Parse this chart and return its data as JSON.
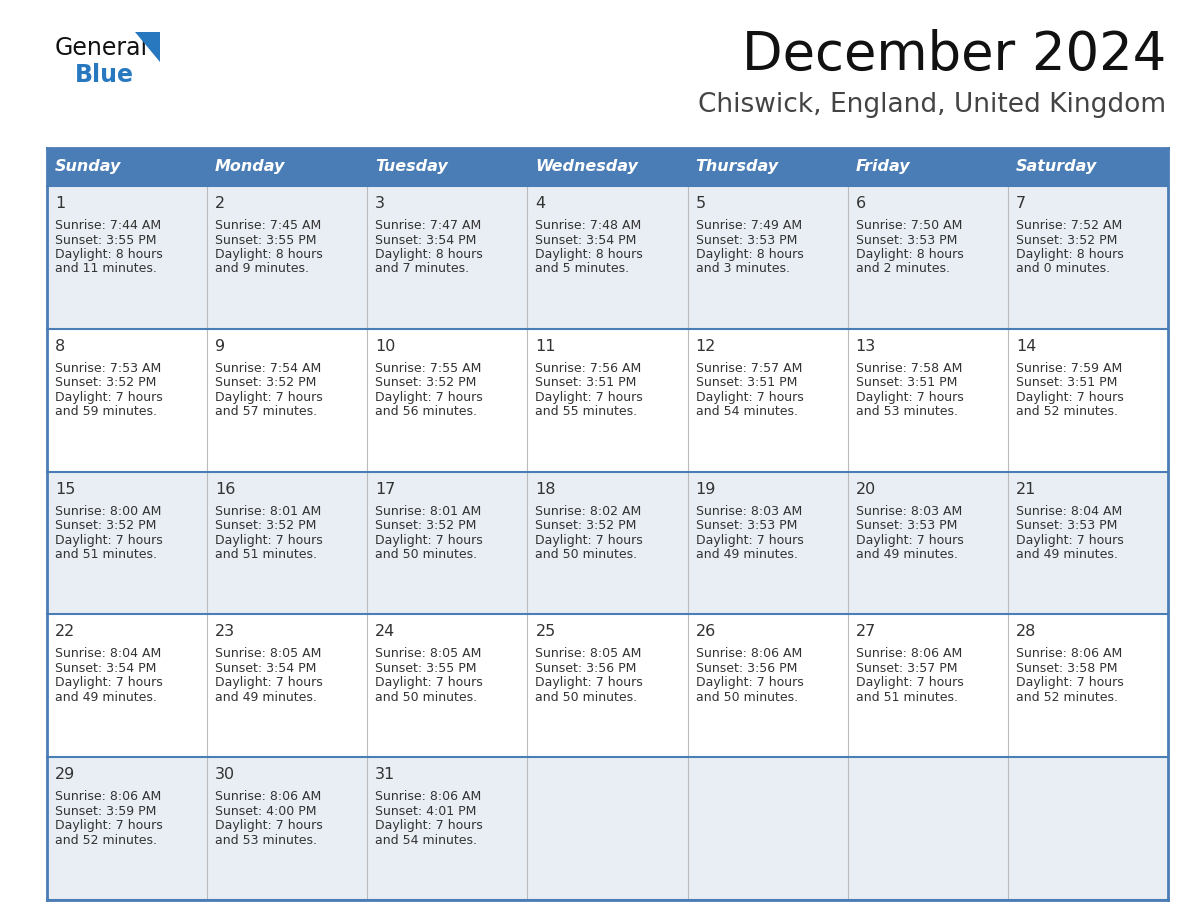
{
  "title": "December 2024",
  "subtitle": "Chiswick, England, United Kingdom",
  "days_of_week": [
    "Sunday",
    "Monday",
    "Tuesday",
    "Wednesday",
    "Thursday",
    "Friday",
    "Saturday"
  ],
  "header_bg": "#4a7db5",
  "header_text": "#ffffff",
  "row_bg_light": "#e8eef4",
  "row_bg_white": "#ffffff",
  "cell_text_color": "#333333",
  "border_color": "#4a7db5",
  "title_color": "#111111",
  "subtitle_color": "#444444",
  "logo_text_color": "#111111",
  "logo_blue_color": "#2878c0",
  "calendar_data": [
    [
      {
        "day": "1",
        "sunrise": "7:44 AM",
        "sunset": "3:55 PM",
        "daylight_h": "8 hours",
        "daylight_m": "and 11 minutes."
      },
      {
        "day": "2",
        "sunrise": "7:45 AM",
        "sunset": "3:55 PM",
        "daylight_h": "8 hours",
        "daylight_m": "and 9 minutes."
      },
      {
        "day": "3",
        "sunrise": "7:47 AM",
        "sunset": "3:54 PM",
        "daylight_h": "8 hours",
        "daylight_m": "and 7 minutes."
      },
      {
        "day": "4",
        "sunrise": "7:48 AM",
        "sunset": "3:54 PM",
        "daylight_h": "8 hours",
        "daylight_m": "and 5 minutes."
      },
      {
        "day": "5",
        "sunrise": "7:49 AM",
        "sunset": "3:53 PM",
        "daylight_h": "8 hours",
        "daylight_m": "and 3 minutes."
      },
      {
        "day": "6",
        "sunrise": "7:50 AM",
        "sunset": "3:53 PM",
        "daylight_h": "8 hours",
        "daylight_m": "and 2 minutes."
      },
      {
        "day": "7",
        "sunrise": "7:52 AM",
        "sunset": "3:52 PM",
        "daylight_h": "8 hours",
        "daylight_m": "and 0 minutes."
      }
    ],
    [
      {
        "day": "8",
        "sunrise": "7:53 AM",
        "sunset": "3:52 PM",
        "daylight_h": "7 hours",
        "daylight_m": "and 59 minutes."
      },
      {
        "day": "9",
        "sunrise": "7:54 AM",
        "sunset": "3:52 PM",
        "daylight_h": "7 hours",
        "daylight_m": "and 57 minutes."
      },
      {
        "day": "10",
        "sunrise": "7:55 AM",
        "sunset": "3:52 PM",
        "daylight_h": "7 hours",
        "daylight_m": "and 56 minutes."
      },
      {
        "day": "11",
        "sunrise": "7:56 AM",
        "sunset": "3:51 PM",
        "daylight_h": "7 hours",
        "daylight_m": "and 55 minutes."
      },
      {
        "day": "12",
        "sunrise": "7:57 AM",
        "sunset": "3:51 PM",
        "daylight_h": "7 hours",
        "daylight_m": "and 54 minutes."
      },
      {
        "day": "13",
        "sunrise": "7:58 AM",
        "sunset": "3:51 PM",
        "daylight_h": "7 hours",
        "daylight_m": "and 53 minutes."
      },
      {
        "day": "14",
        "sunrise": "7:59 AM",
        "sunset": "3:51 PM",
        "daylight_h": "7 hours",
        "daylight_m": "and 52 minutes."
      }
    ],
    [
      {
        "day": "15",
        "sunrise": "8:00 AM",
        "sunset": "3:52 PM",
        "daylight_h": "7 hours",
        "daylight_m": "and 51 minutes."
      },
      {
        "day": "16",
        "sunrise": "8:01 AM",
        "sunset": "3:52 PM",
        "daylight_h": "7 hours",
        "daylight_m": "and 51 minutes."
      },
      {
        "day": "17",
        "sunrise": "8:01 AM",
        "sunset": "3:52 PM",
        "daylight_h": "7 hours",
        "daylight_m": "and 50 minutes."
      },
      {
        "day": "18",
        "sunrise": "8:02 AM",
        "sunset": "3:52 PM",
        "daylight_h": "7 hours",
        "daylight_m": "and 50 minutes."
      },
      {
        "day": "19",
        "sunrise": "8:03 AM",
        "sunset": "3:53 PM",
        "daylight_h": "7 hours",
        "daylight_m": "and 49 minutes."
      },
      {
        "day": "20",
        "sunrise": "8:03 AM",
        "sunset": "3:53 PM",
        "daylight_h": "7 hours",
        "daylight_m": "and 49 minutes."
      },
      {
        "day": "21",
        "sunrise": "8:04 AM",
        "sunset": "3:53 PM",
        "daylight_h": "7 hours",
        "daylight_m": "and 49 minutes."
      }
    ],
    [
      {
        "day": "22",
        "sunrise": "8:04 AM",
        "sunset": "3:54 PM",
        "daylight_h": "7 hours",
        "daylight_m": "and 49 minutes."
      },
      {
        "day": "23",
        "sunrise": "8:05 AM",
        "sunset": "3:54 PM",
        "daylight_h": "7 hours",
        "daylight_m": "and 49 minutes."
      },
      {
        "day": "24",
        "sunrise": "8:05 AM",
        "sunset": "3:55 PM",
        "daylight_h": "7 hours",
        "daylight_m": "and 50 minutes."
      },
      {
        "day": "25",
        "sunrise": "8:05 AM",
        "sunset": "3:56 PM",
        "daylight_h": "7 hours",
        "daylight_m": "and 50 minutes."
      },
      {
        "day": "26",
        "sunrise": "8:06 AM",
        "sunset": "3:56 PM",
        "daylight_h": "7 hours",
        "daylight_m": "and 50 minutes."
      },
      {
        "day": "27",
        "sunrise": "8:06 AM",
        "sunset": "3:57 PM",
        "daylight_h": "7 hours",
        "daylight_m": "and 51 minutes."
      },
      {
        "day": "28",
        "sunrise": "8:06 AM",
        "sunset": "3:58 PM",
        "daylight_h": "7 hours",
        "daylight_m": "and 52 minutes."
      }
    ],
    [
      {
        "day": "29",
        "sunrise": "8:06 AM",
        "sunset": "3:59 PM",
        "daylight_h": "7 hours",
        "daylight_m": "and 52 minutes."
      },
      {
        "day": "30",
        "sunrise": "8:06 AM",
        "sunset": "4:00 PM",
        "daylight_h": "7 hours",
        "daylight_m": "and 53 minutes."
      },
      {
        "day": "31",
        "sunrise": "8:06 AM",
        "sunset": "4:01 PM",
        "daylight_h": "7 hours",
        "daylight_m": "and 54 minutes."
      },
      null,
      null,
      null,
      null
    ]
  ]
}
